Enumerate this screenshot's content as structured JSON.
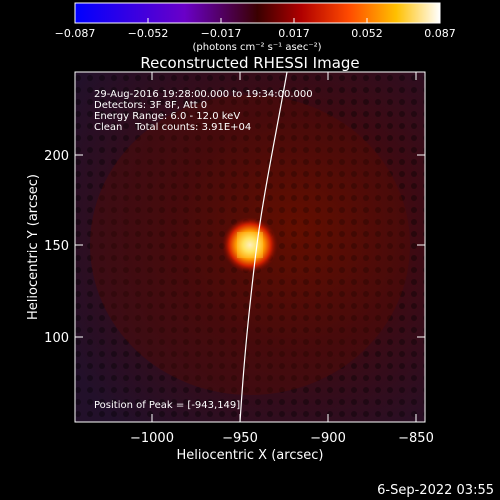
{
  "colorbar": {
    "ticks": [
      "−0.087",
      "−0.052",
      "−0.017",
      "0.017",
      "0.052",
      "0.087"
    ],
    "unit_label": "(photons cm⁻² s⁻¹ asec⁻²)"
  },
  "plot": {
    "title": "Reconstructed RHESSI Image",
    "xlabel": "Heliocentric X (arcsec)",
    "ylabel": "Heliocentric Y (arcsec)",
    "xticks": [
      "−1000",
      "−950",
      "−900",
      "−850"
    ],
    "yticks": [
      "200",
      "150",
      "100"
    ],
    "info": {
      "line1": "29-Aug-2016 19:28:00.000 to 19:34:00.000",
      "line2": "Detectors: 3F 8F, Att 0",
      "line3": "Energy Range: 6.0 - 12.0 keV",
      "line4": "Clean    Total counts: 3.91E+04"
    },
    "peak_label": "Position of Peak = [-943,149]",
    "peak": {
      "x": -943,
      "y": 149
    },
    "x_range": [
      -1040,
      -845
    ],
    "y_range": [
      50,
      227
    ]
  },
  "footer": {
    "timestamp": "6-Sep-2022 03:55"
  }
}
